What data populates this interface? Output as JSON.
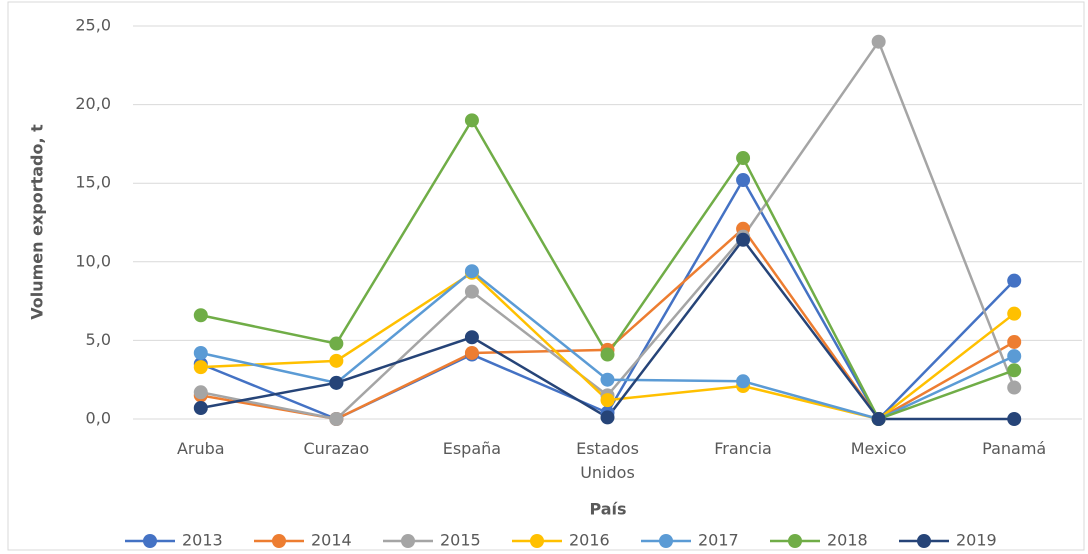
{
  "chart_data": {
    "type": "line",
    "y_label": "Volumen exportado, t",
    "x_label": "País",
    "categories": [
      "Aruba",
      "Curazao",
      "España",
      "Estados Unidos",
      "Francia",
      "Mexico",
      "Panamá"
    ],
    "series": [
      {
        "name": "2013",
        "color": "#4472c4",
        "values": [
          3.5,
          0,
          4.1,
          0.4,
          15.2,
          0,
          8.8
        ]
      },
      {
        "name": "2014",
        "color": "#ed7d31",
        "values": [
          1.5,
          0,
          4.2,
          4.4,
          12.1,
          0,
          4.9
        ]
      },
      {
        "name": "2015",
        "color": "#a5a5a5",
        "values": [
          1.7,
          0,
          8.1,
          1.5,
          11.6,
          24.0,
          2.0
        ]
      },
      {
        "name": "2016",
        "color": "#ffc000",
        "values": [
          3.3,
          3.7,
          9.3,
          1.2,
          2.1,
          0,
          6.7
        ]
      },
      {
        "name": "2017",
        "color": "#5b9bd5",
        "values": [
          4.2,
          2.3,
          9.4,
          2.5,
          2.4,
          0,
          4.0
        ]
      },
      {
        "name": "2018",
        "color": "#70ad47",
        "values": [
          6.6,
          4.8,
          19.0,
          4.1,
          16.6,
          0,
          3.1
        ]
      },
      {
        "name": "2019",
        "color": "#264478",
        "values": [
          0.7,
          2.3,
          5.2,
          0.1,
          11.4,
          0,
          0
        ]
      }
    ],
    "ylim": [
      0,
      25
    ],
    "yticks": [
      {
        "value": 0,
        "label": "0,0"
      },
      {
        "value": 5,
        "label": "5,0"
      },
      {
        "value": 10,
        "label": "10,0"
      },
      {
        "value": 15,
        "label": "15,0"
      },
      {
        "value": 20,
        "label": "20,0"
      },
      {
        "value": 25,
        "label": "25,0"
      }
    ],
    "grid": true,
    "legend": "bottom"
  }
}
